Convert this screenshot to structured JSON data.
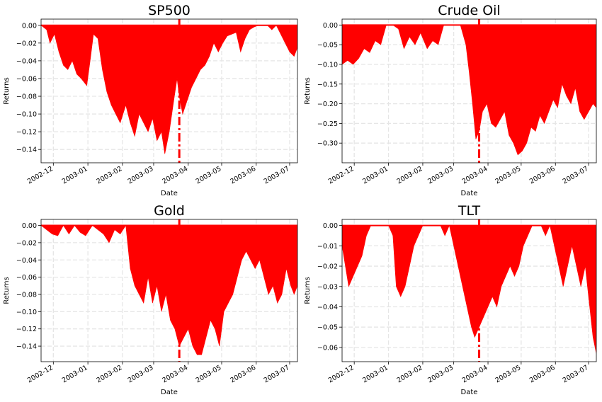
{
  "figure": {
    "background": "#ffffff"
  },
  "colors": {
    "fill": "#ff0000",
    "marker": "#ff0000",
    "grid": "#e6e6e6",
    "axis": "#000000"
  },
  "chart_data": [
    {
      "type": "area",
      "title": "SP500",
      "xlabel": "Date",
      "ylabel": "Returns",
      "ylim": [
        -0.155,
        0.007
      ],
      "yticks": [
        0.0,
        -0.02,
        -0.04,
        -0.06,
        -0.08,
        -0.1,
        -0.12,
        -0.14
      ],
      "ytick_labels": [
        "0.00",
        "−0.02",
        "−0.04",
        "−0.06",
        "−0.08",
        "−0.10",
        "−0.12",
        "−0.14"
      ],
      "xlim": [
        "2002-11-20",
        "2003-07-08"
      ],
      "xtick_labels": [
        "2002-12",
        "2003-01",
        "2003-02",
        "2003-03",
        "2003-04",
        "2003-05",
        "2003-06",
        "2003-07"
      ],
      "grid": true,
      "vline": "2003-03-24",
      "x": [
        "2002-11-20",
        "2002-11-25",
        "2002-11-28",
        "2002-12-02",
        "2002-12-06",
        "2002-12-10",
        "2002-12-14",
        "2002-12-18",
        "2002-12-22",
        "2002-12-26",
        "2002-12-31",
        "2003-01-03",
        "2003-01-06",
        "2003-01-10",
        "2003-01-14",
        "2003-01-18",
        "2003-01-22",
        "2003-01-26",
        "2003-01-30",
        "2003-02-04",
        "2003-02-08",
        "2003-02-12",
        "2003-02-16",
        "2003-02-20",
        "2003-02-24",
        "2003-02-28",
        "2003-03-04",
        "2003-03-08",
        "2003-03-11",
        "2003-03-15",
        "2003-03-19",
        "2003-03-22",
        "2003-03-24",
        "2003-03-27",
        "2003-03-31",
        "2003-04-04",
        "2003-04-08",
        "2003-04-12",
        "2003-04-16",
        "2003-04-20",
        "2003-04-24",
        "2003-04-28",
        "2003-05-02",
        "2003-05-06",
        "2003-05-10",
        "2003-05-14",
        "2003-05-18",
        "2003-05-22",
        "2003-05-26",
        "2003-05-30",
        "2003-06-03",
        "2003-06-07",
        "2003-06-11",
        "2003-06-15",
        "2003-06-19",
        "2003-06-23",
        "2003-06-27",
        "2003-07-01",
        "2003-07-05",
        "2003-07-08"
      ],
      "y": [
        0.0,
        -0.005,
        -0.02,
        -0.01,
        -0.03,
        -0.045,
        -0.05,
        -0.04,
        -0.055,
        -0.06,
        -0.068,
        -0.04,
        -0.01,
        -0.015,
        -0.05,
        -0.075,
        -0.09,
        -0.1,
        -0.11,
        -0.09,
        -0.11,
        -0.125,
        -0.1,
        -0.11,
        -0.12,
        -0.105,
        -0.13,
        -0.12,
        -0.145,
        -0.12,
        -0.085,
        -0.06,
        -0.08,
        -0.1,
        -0.085,
        -0.07,
        -0.06,
        -0.05,
        -0.045,
        -0.035,
        -0.02,
        -0.03,
        -0.02,
        -0.012,
        -0.01,
        -0.008,
        -0.03,
        -0.015,
        -0.005,
        -0.002,
        0.0,
        0.0,
        0.0,
        -0.005,
        0.0,
        -0.01,
        -0.02,
        -0.03,
        -0.035,
        -0.025
      ]
    },
    {
      "type": "area",
      "title": "Crude Oil",
      "xlabel": "Date",
      "ylabel": "Returns",
      "ylim": [
        -0.35,
        0.015
      ],
      "yticks": [
        0.0,
        -0.05,
        -0.1,
        -0.15,
        -0.2,
        -0.25,
        -0.3
      ],
      "ytick_labels": [
        "0.00",
        "−0.05",
        "−0.10",
        "−0.15",
        "−0.20",
        "−0.25",
        "−0.30"
      ],
      "xlim": [
        "2002-11-20",
        "2003-07-08"
      ],
      "xtick_labels": [
        "2002-12",
        "2003-01",
        "2003-02",
        "2003-03",
        "2003-04",
        "2003-05",
        "2003-06",
        "2003-07"
      ],
      "grid": true,
      "vline": "2003-03-24",
      "x": [
        "2002-11-20",
        "2002-11-25",
        "2002-11-30",
        "2002-12-05",
        "2002-12-10",
        "2002-12-15",
        "2002-12-20",
        "2002-12-25",
        "2002-12-30",
        "2003-01-05",
        "2003-01-10",
        "2003-01-15",
        "2003-01-20",
        "2003-01-25",
        "2003-01-30",
        "2003-02-05",
        "2003-02-10",
        "2003-02-15",
        "2003-02-20",
        "2003-02-25",
        "2003-03-02",
        "2003-03-07",
        "2003-03-12",
        "2003-03-15",
        "2003-03-18",
        "2003-03-21",
        "2003-03-24",
        "2003-03-27",
        "2003-03-31",
        "2003-04-04",
        "2003-04-08",
        "2003-04-12",
        "2003-04-16",
        "2003-04-20",
        "2003-04-24",
        "2003-04-28",
        "2003-05-02",
        "2003-05-06",
        "2003-05-10",
        "2003-05-14",
        "2003-05-18",
        "2003-05-22",
        "2003-05-26",
        "2003-05-30",
        "2003-06-03",
        "2003-06-07",
        "2003-06-11",
        "2003-06-15",
        "2003-06-19",
        "2003-06-23",
        "2003-06-27",
        "2003-07-01",
        "2003-07-05",
        "2003-07-08"
      ],
      "y": [
        -0.1,
        -0.09,
        -0.1,
        -0.085,
        -0.06,
        -0.07,
        -0.04,
        -0.05,
        -0.0,
        -0.0,
        -0.01,
        -0.06,
        -0.03,
        -0.05,
        -0.02,
        -0.06,
        -0.04,
        -0.05,
        -0.0,
        -0.0,
        -0.0,
        -0.0,
        -0.05,
        -0.12,
        -0.2,
        -0.29,
        -0.27,
        -0.22,
        -0.2,
        -0.25,
        -0.26,
        -0.24,
        -0.22,
        -0.28,
        -0.3,
        -0.33,
        -0.32,
        -0.3,
        -0.26,
        -0.27,
        -0.23,
        -0.25,
        -0.22,
        -0.19,
        -0.21,
        -0.15,
        -0.18,
        -0.2,
        -0.16,
        -0.22,
        -0.24,
        -0.22,
        -0.2,
        -0.21
      ]
    },
    {
      "type": "area",
      "title": "Gold",
      "xlabel": "Date",
      "ylabel": "Returns",
      "ylim": [
        -0.158,
        0.007
      ],
      "yticks": [
        0.0,
        -0.02,
        -0.04,
        -0.06,
        -0.08,
        -0.1,
        -0.12,
        -0.14
      ],
      "ytick_labels": [
        "0.00",
        "−0.02",
        "−0.04",
        "−0.06",
        "−0.08",
        "−0.10",
        "−0.12",
        "−0.14"
      ],
      "xlim": [
        "2002-11-20",
        "2003-07-08"
      ],
      "xtick_labels": [
        "2002-12",
        "2003-01",
        "2003-02",
        "2003-03",
        "2003-04",
        "2003-05",
        "2003-06",
        "2003-07"
      ],
      "grid": true,
      "vline": "2003-03-24",
      "x": [
        "2002-11-20",
        "2002-11-25",
        "2002-11-30",
        "2002-12-05",
        "2002-12-10",
        "2002-12-15",
        "2002-12-20",
        "2002-12-25",
        "2002-12-30",
        "2003-01-05",
        "2003-01-10",
        "2003-01-15",
        "2003-01-20",
        "2003-01-25",
        "2003-01-30",
        "2003-02-04",
        "2003-02-08",
        "2003-02-12",
        "2003-02-16",
        "2003-02-20",
        "2003-02-24",
        "2003-02-28",
        "2003-03-04",
        "2003-03-08",
        "2003-03-12",
        "2003-03-16",
        "2003-03-20",
        "2003-03-24",
        "2003-03-28",
        "2003-04-01",
        "2003-04-05",
        "2003-04-09",
        "2003-04-13",
        "2003-04-17",
        "2003-04-21",
        "2003-04-25",
        "2003-04-29",
        "2003-05-03",
        "2003-05-07",
        "2003-05-11",
        "2003-05-15",
        "2003-05-19",
        "2003-05-23",
        "2003-05-27",
        "2003-05-31",
        "2003-06-04",
        "2003-06-08",
        "2003-06-12",
        "2003-06-16",
        "2003-06-20",
        "2003-06-24",
        "2003-06-28",
        "2003-07-02",
        "2003-07-05",
        "2003-07-08"
      ],
      "y": [
        0.0,
        -0.005,
        -0.01,
        -0.012,
        0.0,
        -0.01,
        0.0,
        -0.008,
        -0.012,
        0.0,
        -0.005,
        -0.01,
        -0.02,
        -0.005,
        -0.01,
        0.0,
        -0.05,
        -0.07,
        -0.08,
        -0.09,
        -0.06,
        -0.09,
        -0.07,
        -0.1,
        -0.08,
        -0.11,
        -0.12,
        -0.14,
        -0.13,
        -0.12,
        -0.14,
        -0.15,
        -0.15,
        -0.13,
        -0.11,
        -0.12,
        -0.14,
        -0.1,
        -0.09,
        -0.08,
        -0.06,
        -0.04,
        -0.03,
        -0.04,
        -0.05,
        -0.04,
        -0.06,
        -0.08,
        -0.07,
        -0.09,
        -0.08,
        -0.05,
        -0.07,
        -0.08,
        -0.07
      ]
    },
    {
      "type": "area",
      "title": "TLT",
      "xlabel": "Date",
      "ylabel": "Returns",
      "ylim": [
        -0.067,
        0.003
      ],
      "yticks": [
        0.0,
        -0.01,
        -0.02,
        -0.03,
        -0.04,
        -0.05,
        -0.06
      ],
      "ytick_labels": [
        "0.00",
        "−0.01",
        "−0.02",
        "−0.03",
        "−0.04",
        "−0.05",
        "−0.06"
      ],
      "xlim": [
        "2002-11-20",
        "2003-07-08"
      ],
      "xtick_labels": [
        "2002-12",
        "2003-01",
        "2003-02",
        "2003-03",
        "2003-04",
        "2003-05",
        "2003-06",
        "2003-07"
      ],
      "grid": true,
      "vline": "2003-03-24",
      "x": [
        "2002-11-20",
        "2002-11-23",
        "2002-11-26",
        "2002-11-30",
        "2002-12-04",
        "2002-12-08",
        "2002-12-12",
        "2002-12-16",
        "2002-12-20",
        "2002-12-24",
        "2002-12-28",
        "2003-01-01",
        "2003-01-05",
        "2003-01-08",
        "2003-01-12",
        "2003-01-16",
        "2003-01-20",
        "2003-01-24",
        "2003-01-28",
        "2003-02-01",
        "2003-02-05",
        "2003-02-09",
        "2003-02-13",
        "2003-02-17",
        "2003-02-21",
        "2003-02-25",
        "2003-03-01",
        "2003-03-05",
        "2003-03-09",
        "2003-03-13",
        "2003-03-17",
        "2003-03-20",
        "2003-03-24",
        "2003-03-28",
        "2003-04-01",
        "2003-04-05",
        "2003-04-09",
        "2003-04-13",
        "2003-04-17",
        "2003-04-21",
        "2003-04-25",
        "2003-04-29",
        "2003-05-03",
        "2003-05-07",
        "2003-05-11",
        "2003-05-15",
        "2003-05-19",
        "2003-05-23",
        "2003-05-27",
        "2003-05-31",
        "2003-06-04",
        "2003-06-08",
        "2003-06-12",
        "2003-06-16",
        "2003-06-20",
        "2003-06-24",
        "2003-06-28",
        "2003-07-02",
        "2003-07-05",
        "2003-07-08"
      ],
      "y": [
        -0.01,
        -0.02,
        -0.03,
        -0.025,
        -0.02,
        -0.015,
        -0.005,
        0.0,
        0.0,
        0.0,
        0.0,
        0.0,
        -0.005,
        -0.03,
        -0.035,
        -0.03,
        -0.02,
        -0.01,
        -0.005,
        0.0,
        0.0,
        0.0,
        0.0,
        0.0,
        -0.005,
        0.0,
        -0.01,
        -0.02,
        -0.03,
        -0.04,
        -0.05,
        -0.055,
        -0.05,
        -0.045,
        -0.04,
        -0.035,
        -0.04,
        -0.03,
        -0.025,
        -0.02,
        -0.025,
        -0.02,
        -0.01,
        -0.005,
        0.0,
        0.0,
        0.0,
        -0.005,
        0.0,
        -0.01,
        -0.02,
        -0.03,
        -0.02,
        -0.01,
        -0.02,
        -0.03,
        -0.02,
        -0.04,
        -0.055,
        -0.063
      ]
    }
  ]
}
